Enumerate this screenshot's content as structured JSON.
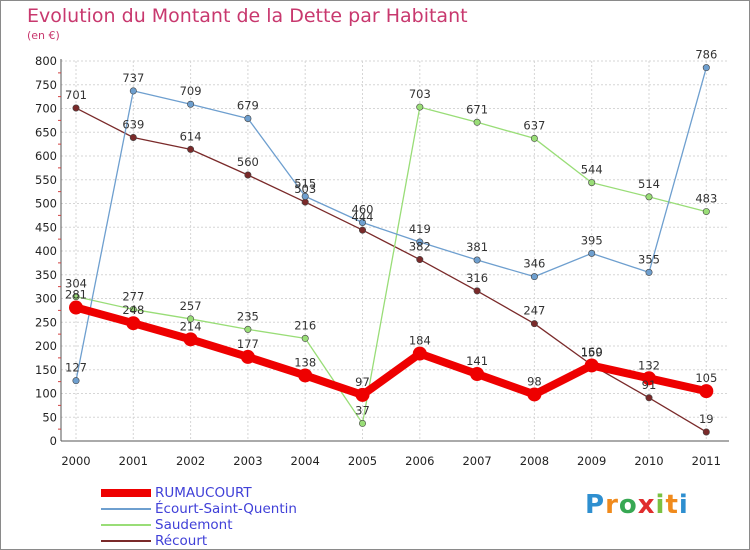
{
  "chart_data": {
    "type": "line",
    "title": "Evolution du Montant de la Dette par Habitant",
    "subtitle": "(en €)",
    "categories": [
      "2000",
      "2001",
      "2002",
      "2003",
      "2004",
      "2005",
      "2006",
      "2007",
      "2008",
      "2009",
      "2010",
      "2011"
    ],
    "ylim": [
      0,
      800
    ],
    "yticks": [
      0,
      50,
      100,
      150,
      200,
      250,
      300,
      350,
      400,
      450,
      500,
      550,
      600,
      650,
      700,
      750,
      800
    ],
    "grid": true,
    "legend_position": "bottom-left",
    "series": [
      {
        "name": "RUMAUCOURT",
        "color": "#ee0000",
        "values": [
          281,
          248,
          214,
          177,
          138,
          97,
          184,
          141,
          98,
          159,
          132,
          105
        ]
      },
      {
        "name": "Écourt-Saint-Quentin",
        "color": "#6e9fcf",
        "values": [
          127,
          737,
          709,
          679,
          515,
          460,
          419,
          381,
          346,
          395,
          355,
          786
        ]
      },
      {
        "name": "Saudemont",
        "color": "#99dd77",
        "values": [
          304,
          277,
          257,
          235,
          216,
          37,
          703,
          671,
          637,
          544,
          514,
          483
        ]
      },
      {
        "name": "Récourt",
        "color": "#7a2a2a",
        "values": [
          701,
          639,
          614,
          560,
          503,
          444,
          382,
          316,
          247,
          160,
          91,
          19
        ]
      }
    ]
  },
  "logo": {
    "text": "Proxiti",
    "letters": [
      "P",
      "r",
      "o",
      "x",
      "i",
      "t",
      "i"
    ],
    "letter_colors": [
      "#2e8fd0",
      "#f08a1c",
      "#37a853",
      "#e02d2d",
      "#7ac142",
      "#f08a1c",
      "#2e8fd0"
    ]
  }
}
